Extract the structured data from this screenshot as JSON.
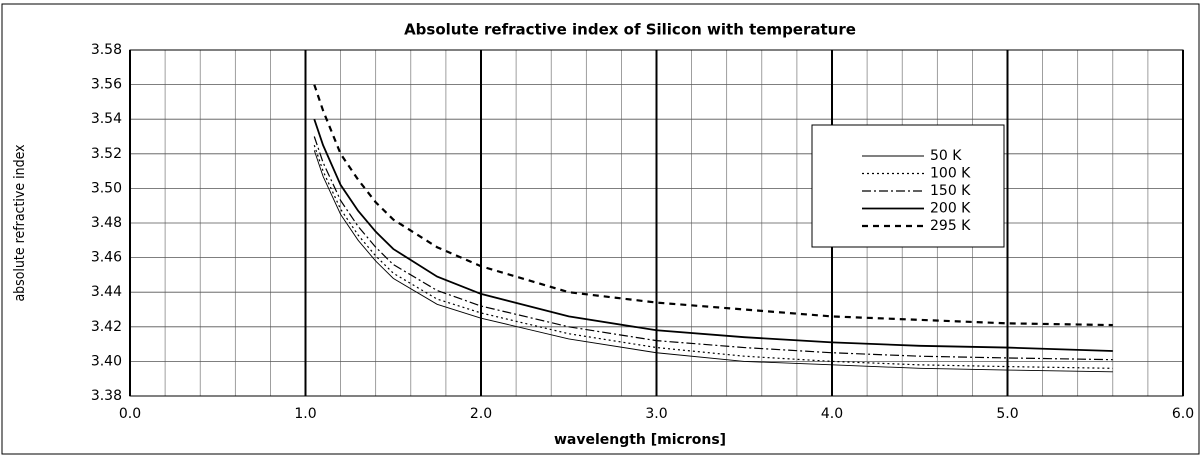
{
  "chart_data": {
    "type": "line",
    "title": "Absolute refractive index of Silicon with temperature",
    "x_label": "wavelength [microns]",
    "y_label": "absolute refractive index",
    "x": [
      1.05,
      1.1,
      1.2,
      1.3,
      1.4,
      1.5,
      1.75,
      2.0,
      2.5,
      3.0,
      3.5,
      4.0,
      4.5,
      5.0,
      5.6
    ],
    "series": [
      {
        "name": "50 K",
        "color": "#000000",
        "style": "solid",
        "width": 0.9,
        "values": [
          3.522,
          3.507,
          3.485,
          3.47,
          3.458,
          3.448,
          3.433,
          3.425,
          3.413,
          3.405,
          3.4,
          3.398,
          3.396,
          3.395,
          3.394
        ]
      },
      {
        "name": "100 K",
        "color": "#000000",
        "style": "dotted",
        "width": 1.2,
        "values": [
          3.525,
          3.51,
          3.488,
          3.473,
          3.461,
          3.451,
          3.436,
          3.428,
          3.416,
          3.408,
          3.403,
          3.4,
          3.398,
          3.397,
          3.396
        ]
      },
      {
        "name": "150 K",
        "color": "#000000",
        "style": "dashdot",
        "width": 1.2,
        "values": [
          3.53,
          3.515,
          3.493,
          3.478,
          3.466,
          3.456,
          3.441,
          3.432,
          3.42,
          3.412,
          3.408,
          3.405,
          3.403,
          3.402,
          3.401
        ]
      },
      {
        "name": "200 K",
        "color": "#000000",
        "style": "solid",
        "width": 1.8,
        "values": [
          3.54,
          3.525,
          3.502,
          3.487,
          3.475,
          3.465,
          3.449,
          3.439,
          3.426,
          3.418,
          3.414,
          3.411,
          3.409,
          3.408,
          3.406
        ]
      },
      {
        "name": "295 K",
        "color": "#000000",
        "style": "dashed",
        "width": 2.2,
        "values": [
          3.56,
          3.545,
          3.52,
          3.505,
          3.492,
          3.482,
          3.466,
          3.455,
          3.44,
          3.434,
          3.43,
          3.426,
          3.424,
          3.422,
          3.421
        ]
      }
    ],
    "xlim": [
      0,
      6
    ],
    "ylim": [
      3.38,
      3.58
    ],
    "xticks": [
      {
        "value": 0,
        "label": "0.0"
      },
      {
        "value": 1,
        "label": "1.0"
      },
      {
        "value": 2,
        "label": "2.0"
      },
      {
        "value": 3,
        "label": "3.0"
      },
      {
        "value": 4,
        "label": "4.0"
      },
      {
        "value": 5,
        "label": "5.0"
      },
      {
        "value": 6,
        "label": "6.0"
      }
    ],
    "xminorticks": [
      0.2,
      0.4,
      0.6,
      0.8,
      1.2,
      1.4,
      1.6,
      1.8,
      2.2,
      2.4,
      2.6,
      2.8,
      3.2,
      3.4,
      3.6,
      3.8,
      4.2,
      4.4,
      4.6,
      4.8,
      5.2,
      5.4,
      5.6,
      5.8
    ],
    "yticks": [
      3.38,
      {
        "value": 3.4,
        "label": "3.40"
      },
      3.42,
      3.44,
      3.46,
      3.48,
      {
        "value": 3.5,
        "label": "3.50"
      },
      3.52,
      3.54,
      3.56,
      3.58
    ],
    "grid": true,
    "legend": "upper right"
  }
}
